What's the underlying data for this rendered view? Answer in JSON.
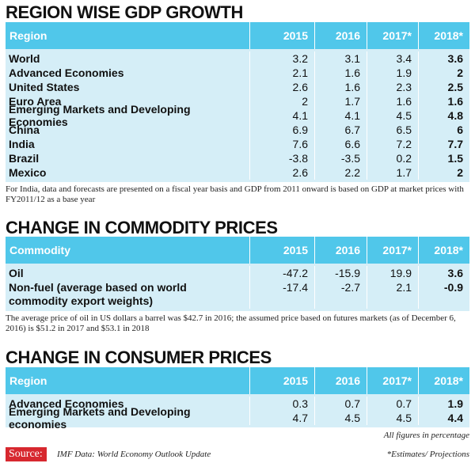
{
  "gdp": {
    "title": "REGION WISE GDP GROWTH",
    "headers": [
      "Region",
      "2015",
      "2016",
      "2017*",
      "2018*"
    ],
    "rows": [
      {
        "label": "World",
        "values": [
          "3.2",
          "3.1",
          "3.4",
          "3.6"
        ]
      },
      {
        "label": "Advanced Economies",
        "values": [
          "2.1",
          "1.6",
          "1.9",
          "2"
        ]
      },
      {
        "label": "United States",
        "values": [
          "2.6",
          "1.6",
          "2.3",
          "2.5"
        ]
      },
      {
        "label": "Euro Area",
        "values": [
          "2",
          "1.7",
          "1.6",
          "1.6"
        ]
      },
      {
        "label": "Emerging Markets and Developing Economies",
        "values": [
          "4.1",
          "4.1",
          "4.5",
          "4.8"
        ]
      },
      {
        "label": "China",
        "values": [
          "6.9",
          "6.7",
          "6.5",
          "6"
        ]
      },
      {
        "label": "India",
        "values": [
          "7.6",
          "6.6",
          "7.2",
          "7.7"
        ]
      },
      {
        "label": "Brazil",
        "values": [
          "-3.8",
          "-3.5",
          "0.2",
          "1.5"
        ]
      },
      {
        "label": "Mexico",
        "values": [
          "2.6",
          "2.2",
          "1.7",
          "2"
        ]
      }
    ],
    "note": "For India, data and forecasts are presented on a fiscal year basis and GDP from 2011 onward is based on GDP at market prices with FY2011/12 as a base year"
  },
  "commodity": {
    "title": "CHANGE IN COMMODITY PRICES",
    "headers": [
      "Commodity",
      "2015",
      "2016",
      "2017*",
      "2018*"
    ],
    "rows": [
      {
        "label": "Oil",
        "values": [
          "-47.2",
          "-15.9",
          "19.9",
          "3.6"
        ]
      },
      {
        "label": "Non-fuel (average based on world commodity export weights)",
        "values": [
          "-17.4",
          "-2.7",
          "2.1",
          "-0.9"
        ]
      }
    ],
    "note": "The average price of oil in US dollars a barrel was $42.7 in 2016; the assumed price based on futures markets (as of December 6, 2016) is $51.2 in 2017 and $53.1 in 2018"
  },
  "consumer": {
    "title": "CHANGE IN CONSUMER PRICES",
    "headers": [
      "Region",
      "2015",
      "2016",
      "2017*",
      "2018*"
    ],
    "rows": [
      {
        "label": "Advanced Economies",
        "values": [
          "0.3",
          "0.7",
          "0.7",
          "1.9"
        ]
      },
      {
        "label": "Emerging Markets and Developing economies",
        "values": [
          "4.7",
          "4.5",
          "4.5",
          "4.4"
        ]
      }
    ]
  },
  "footer": {
    "figures_note": "All figures in percentage",
    "source_label": "Source:",
    "source_text": "IMF Data: World Economy Outlook Update",
    "estimates_note": "*Estimates/ Projections"
  }
}
